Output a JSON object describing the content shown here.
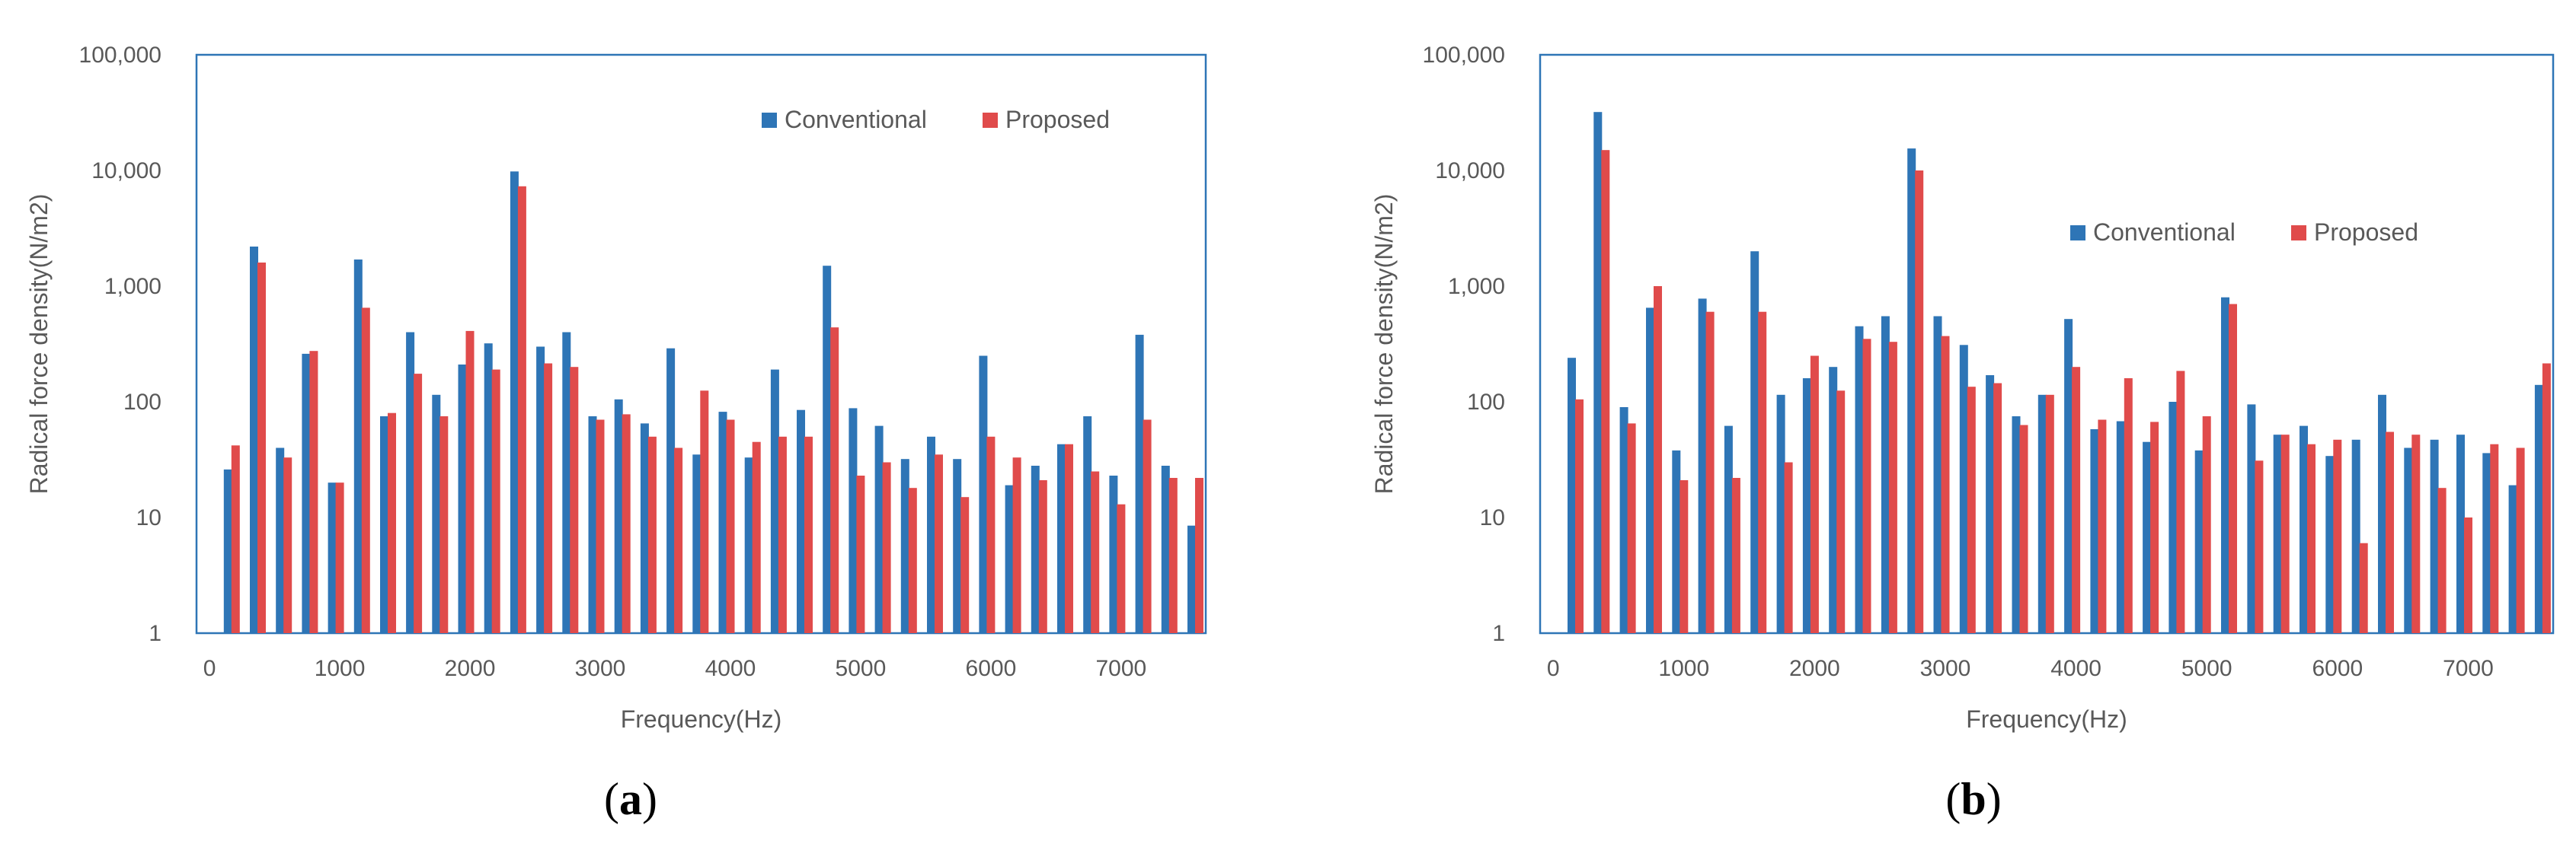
{
  "chart_data": [
    {
      "type": "bar",
      "caption_open": "(",
      "caption_letter": "a",
      "caption_close": ")",
      "xlabel": "Frequency(Hz)",
      "ylabel": "Radical force density(N/m2)",
      "yscale": "log",
      "ylim": [
        1,
        100000
      ],
      "xlim": [
        -100,
        7650
      ],
      "xticks": [
        0,
        1000,
        2000,
        3000,
        4000,
        5000,
        6000,
        7000
      ],
      "xtick_labels": [
        "0",
        "1000",
        "2000",
        "3000",
        "4000",
        "5000",
        "6000",
        "7000"
      ],
      "yticks": [
        1,
        10,
        100,
        1000,
        10000,
        100000
      ],
      "ytick_labels": [
        "1",
        "10",
        "100",
        "1,000",
        "10,000",
        "100,000"
      ],
      "legend_position": "top-right",
      "colors": [
        "#2e75b6",
        "#e04b4b"
      ],
      "categories": [
        200,
        400,
        600,
        800,
        1000,
        1200,
        1400,
        1600,
        1800,
        2000,
        2200,
        2400,
        2600,
        2800,
        3000,
        3200,
        3400,
        3600,
        3800,
        4000,
        4200,
        4400,
        4600,
        4800,
        5000,
        5200,
        5400,
        5600,
        5800,
        6000,
        6200,
        6400,
        6600,
        6800,
        7000,
        7200,
        7400,
        7600
      ],
      "series": [
        {
          "name": "Conventional",
          "values": [
            26,
            2200,
            40,
            260,
            20,
            1700,
            75,
            400,
            115,
            210,
            320,
            9800,
            300,
            400,
            75,
            105,
            65,
            290,
            35,
            82,
            33,
            190,
            85,
            1500,
            88,
            62,
            32,
            50,
            32,
            250,
            19,
            28,
            43,
            75,
            23,
            380,
            28,
            8.5
          ]
        },
        {
          "name": "Proposed",
          "values": [
            42,
            1600,
            33,
            275,
            20,
            650,
            80,
            175,
            75,
            410,
            190,
            7300,
            215,
            200,
            70,
            78,
            50,
            40,
            125,
            70,
            45,
            50,
            50,
            440,
            23,
            30,
            18,
            35,
            15,
            50,
            33,
            21,
            43,
            25,
            13,
            70,
            22,
            22
          ]
        }
      ]
    },
    {
      "type": "bar",
      "caption_open": "(",
      "caption_letter": "b",
      "caption_close": ")",
      "xlabel": "Frequency(Hz)",
      "ylabel": "Radical force density(N/m2)",
      "yscale": "log",
      "ylim": [
        1,
        100000
      ],
      "xlim": [
        -100,
        7650
      ],
      "xticks": [
        0,
        1000,
        2000,
        3000,
        4000,
        5000,
        6000,
        7000
      ],
      "xtick_labels": [
        "0",
        "1000",
        "2000",
        "3000",
        "4000",
        "5000",
        "6000",
        "7000"
      ],
      "yticks": [
        1,
        10,
        100,
        1000,
        10000,
        100000
      ],
      "ytick_labels": [
        "1",
        "10",
        "100",
        "1,000",
        "10,000",
        "100,000"
      ],
      "legend_position": "center-right",
      "colors": [
        "#2e75b6",
        "#e04b4b"
      ],
      "categories": [
        200,
        400,
        600,
        800,
        1000,
        1200,
        1400,
        1600,
        1800,
        2000,
        2200,
        2400,
        2600,
        2800,
        3000,
        3200,
        3400,
        3600,
        3800,
        4000,
        4200,
        4400,
        4600,
        4800,
        5000,
        5200,
        5400,
        5600,
        5800,
        6000,
        6200,
        6400,
        6600,
        6800,
        7000,
        7200,
        7400,
        7600
      ],
      "series": [
        {
          "name": "Conventional",
          "values": [
            240,
            32000,
            90,
            650,
            38,
            780,
            62,
            2000,
            115,
            160,
            200,
            450,
            550,
            15500,
            550,
            310,
            170,
            75,
            115,
            520,
            58,
            68,
            45,
            100,
            38,
            800,
            95,
            52,
            62,
            34,
            47,
            115,
            40,
            47,
            52,
            36,
            19,
            140
          ]
        },
        {
          "name": "Proposed",
          "values": [
            105,
            15000,
            65,
            1000,
            21,
            600,
            22,
            600,
            30,
            250,
            125,
            350,
            330,
            10000,
            370,
            135,
            145,
            63,
            115,
            200,
            70,
            160,
            67,
            185,
            75,
            700,
            31,
            52,
            43,
            47,
            6,
            55,
            52,
            18,
            10,
            43,
            40,
            215
          ]
        }
      ]
    }
  ]
}
